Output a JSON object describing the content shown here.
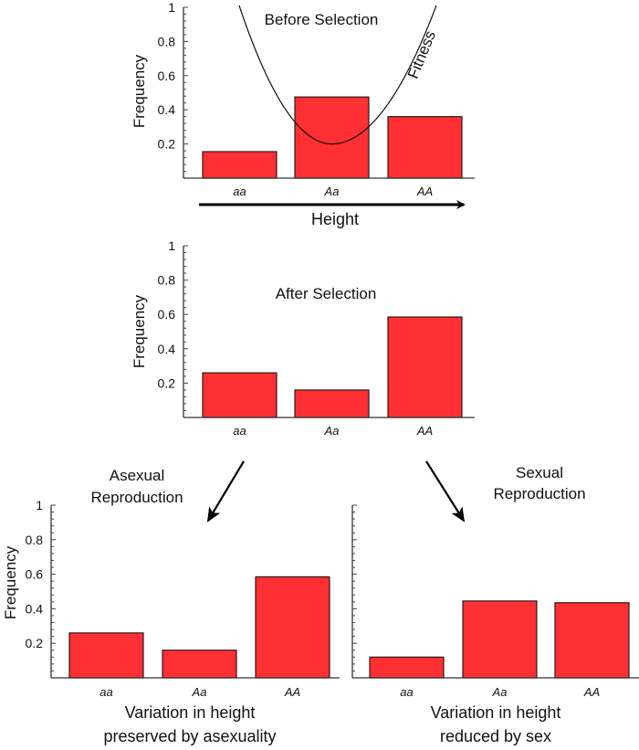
{
  "chart_data": [
    {
      "id": "before",
      "type": "bar",
      "title": "Before Selection",
      "ylabel": "Frequency",
      "xlabel": "Height",
      "xlabel_arrow": true,
      "ylim": [
        0,
        1
      ],
      "yticks": [
        "0.2",
        "0.4",
        "0.6",
        "0.8",
        "1"
      ],
      "categories": [
        "aa",
        "Aa",
        "AA"
      ],
      "values": [
        0.155,
        0.475,
        0.36
      ],
      "overlay_curve": {
        "label": "Fitness",
        "shape": "parabola",
        "min_value": 0.2,
        "min_at_category": "Aa"
      },
      "show_ytick_labels": true
    },
    {
      "id": "after",
      "type": "bar",
      "title": "After Selection",
      "ylabel": "Frequency",
      "ylim": [
        0,
        1
      ],
      "yticks": [
        "0.2",
        "0.4",
        "0.6",
        "0.8",
        "1"
      ],
      "categories": [
        "aa",
        "Aa",
        "AA"
      ],
      "values": [
        0.26,
        0.16,
        0.585
      ],
      "show_ytick_labels": true
    },
    {
      "id": "asexual",
      "type": "bar",
      "header": [
        "Asexual",
        "Reproduction"
      ],
      "ylabel": "Frequency",
      "xlabel_lines": [
        "Variation in height",
        "preserved by asexuality"
      ],
      "ylim": [
        0,
        1
      ],
      "yticks": [
        "0.2",
        "0.4",
        "0.6",
        "0.8",
        "1"
      ],
      "categories": [
        "aa",
        "Aa",
        "AA"
      ],
      "values": [
        0.26,
        0.16,
        0.585
      ],
      "show_ytick_labels": true
    },
    {
      "id": "sexual",
      "type": "bar",
      "header": [
        "Sexual",
        "Reproduction"
      ],
      "xlabel_lines": [
        "Variation in height",
        "reduced by sex"
      ],
      "ylim": [
        0,
        1
      ],
      "categories": [
        "aa",
        "Aa",
        "AA"
      ],
      "values": [
        0.12,
        0.445,
        0.435
      ],
      "show_ytick_labels": false
    }
  ],
  "colors": {
    "bar": "#fe3033",
    "axis": "#333333"
  }
}
